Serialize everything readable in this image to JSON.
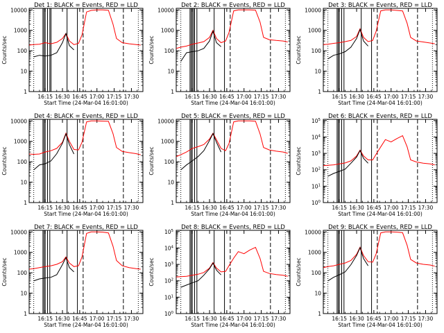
{
  "figure": {
    "ylabel": "Counts/sec",
    "xlabel": "Start Time (24-Mar-04 16:01:00)",
    "x_ticks": [
      "16:15",
      "16:30",
      "16:45",
      "17:00",
      "17:15",
      "17:30"
    ],
    "y_ticks_decimal": [
      "1",
      "10",
      "100",
      "1000",
      "10000"
    ],
    "y_ticks_power": [
      "10^0",
      "10^1",
      "10^2",
      "10^3",
      "10^4",
      "10^5"
    ],
    "series_colors": {
      "events": "#000000",
      "lld": "#ff0000"
    }
  },
  "chart_data": [
    {
      "type": "line",
      "title": "Det 1: BLACK = Events, RED = LLD",
      "xlabel": "Start Time (24-Mar-04 16:01:00)",
      "ylabel": "Counts/sec",
      "ylim": [
        1,
        12000
      ],
      "y_scale": "log",
      "y_tick_style": "decimal",
      "x": [
        "16:01",
        "16:05",
        "16:10",
        "16:15",
        "16:20",
        "16:25",
        "16:30",
        "16:33",
        "16:36",
        "16:40",
        "16:44",
        "16:47",
        "16:51",
        "16:55",
        "17:00",
        "17:05",
        "17:10",
        "17:14",
        "17:17",
        "17:22",
        "17:28",
        "17:34",
        "17:38"
      ],
      "series": [
        {
          "values": [
            190,
            200,
            210,
            250,
            220,
            260,
            400,
            700,
            300,
            200,
            230,
            600,
            8000,
            9500,
            10000,
            10000,
            9600,
            2000,
            400,
            250,
            220,
            200,
            190
          ]
        },
        {
          "values": [
            null,
            50,
            60,
            55,
            60,
            80,
            250,
            700,
            180,
            110,
            null,
            null,
            null,
            null,
            null,
            null,
            null,
            null,
            null,
            null,
            null,
            null,
            null
          ]
        }
      ],
      "vlines_solid": [
        "16:13",
        "16:14",
        "16:15",
        "16:17",
        "16:19",
        "16:20",
        "16:34",
        "16:43"
      ],
      "vlines_dashed": [
        "16:48",
        "17:23"
      ],
      "vlines_dotted": [
        "16:05",
        "17:36"
      ]
    },
    {
      "type": "line",
      "title": "Det 2: BLACK = Events, RED = LLD",
      "xlabel": "Start Time (24-Mar-04 16:01:00)",
      "ylabel": "Counts/sec",
      "ylim": [
        1,
        12000
      ],
      "y_scale": "log",
      "y_tick_style": "decimal",
      "x": [
        "16:01",
        "16:05",
        "16:10",
        "16:15",
        "16:20",
        "16:25",
        "16:30",
        "16:33",
        "16:36",
        "16:40",
        "16:44",
        "16:47",
        "16:51",
        "16:55",
        "17:00",
        "17:05",
        "17:10",
        "17:14",
        "17:17",
        "17:22",
        "17:28",
        "17:34",
        "17:38"
      ],
      "series": [
        {
          "values": [
            130,
            150,
            170,
            210,
            240,
            280,
            450,
            1000,
            400,
            250,
            300,
            800,
            9000,
            10000,
            10000,
            10000,
            9800,
            2500,
            450,
            350,
            320,
            300,
            270
          ]
        },
        {
          "values": [
            null,
            30,
            80,
            90,
            100,
            130,
            300,
            900,
            250,
            160,
            null,
            null,
            null,
            null,
            null,
            null,
            null,
            null,
            null,
            null,
            null,
            null,
            null
          ]
        }
      ],
      "vlines_solid": [
        "16:13",
        "16:14",
        "16:15",
        "16:16",
        "16:17",
        "16:19",
        "16:34",
        "16:43"
      ],
      "vlines_dashed": [
        "16:48",
        "17:23"
      ],
      "vlines_dotted": [
        "16:05",
        "17:36"
      ]
    },
    {
      "type": "line",
      "title": "Det 3: BLACK = Events, RED = LLD",
      "xlabel": "Start Time (24-Mar-04 16:01:00)",
      "ylabel": "Counts/sec",
      "ylim": [
        1,
        12000
      ],
      "y_scale": "log",
      "y_tick_style": "decimal",
      "x": [
        "16:01",
        "16:05",
        "16:10",
        "16:15",
        "16:20",
        "16:25",
        "16:30",
        "16:33",
        "16:36",
        "16:40",
        "16:44",
        "16:47",
        "16:51",
        "16:55",
        "17:00",
        "17:05",
        "17:10",
        "17:14",
        "17:17",
        "17:22",
        "17:28",
        "17:34",
        "17:38"
      ],
      "series": [
        {
          "values": [
            200,
            210,
            230,
            250,
            280,
            320,
            500,
            1200,
            450,
            280,
            320,
            900,
            9000,
            10000,
            10000,
            9500,
            9000,
            2200,
            450,
            300,
            270,
            240,
            220
          ]
        },
        {
          "values": [
            null,
            40,
            60,
            70,
            90,
            150,
            400,
            1100,
            300,
            170,
            null,
            null,
            null,
            null,
            null,
            null,
            null,
            null,
            null,
            null,
            null,
            null,
            null
          ]
        }
      ],
      "vlines_solid": [
        "16:13",
        "16:14",
        "16:15",
        "16:17",
        "16:19",
        "16:34",
        "16:43"
      ],
      "vlines_dashed": [
        "16:48",
        "17:23"
      ],
      "vlines_dotted": [
        "16:05",
        "17:36"
      ]
    },
    {
      "type": "line",
      "title": "Det 4: BLACK = Events, RED = LLD",
      "xlabel": "Start Time (24-Mar-04 16:01:00)",
      "ylabel": "Counts/sec",
      "ylim": [
        1,
        12000
      ],
      "y_scale": "log",
      "y_tick_style": "decimal",
      "x": [
        "16:01",
        "16:05",
        "16:10",
        "16:15",
        "16:20",
        "16:25",
        "16:30",
        "16:33",
        "16:36",
        "16:40",
        "16:44",
        "16:47",
        "16:51",
        "16:55",
        "17:00",
        "17:05",
        "17:10",
        "17:14",
        "17:17",
        "17:22",
        "17:28",
        "17:34",
        "17:38"
      ],
      "series": [
        {
          "values": [
            240,
            230,
            240,
            300,
            350,
            450,
            900,
            2500,
            1000,
            400,
            380,
            900,
            9000,
            10000,
            10000,
            9800,
            9600,
            2400,
            500,
            320,
            280,
            250,
            220
          ]
        },
        {
          "values": [
            null,
            40,
            70,
            80,
            110,
            250,
            800,
            2300,
            700,
            240,
            null,
            null,
            null,
            null,
            null,
            null,
            null,
            null,
            null,
            null,
            null,
            null,
            null
          ]
        }
      ],
      "vlines_solid": [
        "16:13",
        "16:14",
        "16:15",
        "16:17",
        "16:19",
        "16:34",
        "16:43"
      ],
      "vlines_dashed": [
        "16:48",
        "17:23"
      ],
      "vlines_dotted": [
        "16:05",
        "17:36"
      ]
    },
    {
      "type": "line",
      "title": "Det 5: BLACK = Events, RED = LLD",
      "xlabel": "Start Time (24-Mar-04 16:01:00)",
      "ylabel": "Counts/sec",
      "ylim": [
        1,
        12000
      ],
      "y_scale": "log",
      "y_tick_style": "decimal",
      "x": [
        "16:01",
        "16:05",
        "16:10",
        "16:15",
        "16:20",
        "16:25",
        "16:30",
        "16:33",
        "16:36",
        "16:40",
        "16:44",
        "16:47",
        "16:51",
        "16:55",
        "17:00",
        "17:05",
        "17:10",
        "17:14",
        "17:17",
        "17:22",
        "17:28",
        "17:34",
        "17:38"
      ],
      "series": [
        {
          "values": [
            180,
            220,
            300,
            450,
            550,
            700,
            1300,
            2500,
            1200,
            450,
            350,
            800,
            9000,
            10000,
            10000,
            10000,
            9700,
            2300,
            500,
            380,
            330,
            300,
            260
          ]
        },
        {
          "values": [
            null,
            40,
            70,
            110,
            180,
            350,
            1100,
            2400,
            900,
            300,
            null,
            null,
            null,
            null,
            null,
            null,
            null,
            null,
            null,
            null,
            null,
            null,
            null
          ]
        }
      ],
      "vlines_solid": [
        "16:13",
        "16:14",
        "16:15",
        "16:17",
        "16:19",
        "16:34",
        "16:43"
      ],
      "vlines_dashed": [
        "16:48",
        "17:23"
      ],
      "vlines_dotted": [
        "16:05",
        "17:36"
      ]
    },
    {
      "type": "line",
      "title": "Det 6: BLACK = Events, RED = LLD",
      "xlabel": "Start Time (24-Mar-04 16:01:00)",
      "ylabel": "Counts/sec",
      "ylim": [
        1,
        120000
      ],
      "y_scale": "log",
      "y_tick_style": "power",
      "x": [
        "16:01",
        "16:05",
        "16:10",
        "16:15",
        "16:20",
        "16:25",
        "16:30",
        "16:33",
        "16:36",
        "16:40",
        "16:44",
        "16:47",
        "16:51",
        "16:55",
        "17:00",
        "17:05",
        "17:10",
        "17:14",
        "17:17",
        "17:22",
        "17:28",
        "17:34",
        "17:38"
      ],
      "series": [
        {
          "values": [
            180,
            190,
            200,
            230,
            260,
            350,
            700,
            1600,
            700,
            400,
            400,
            900,
            2500,
            7000,
            5000,
            8000,
            12000,
            2500,
            400,
            300,
            250,
            230,
            200
          ]
        },
        {
          "values": [
            null,
            40,
            60,
            80,
            110,
            250,
            600,
            1500,
            500,
            250,
            null,
            null,
            null,
            null,
            null,
            null,
            null,
            null,
            null,
            null,
            null,
            null,
            null
          ]
        }
      ],
      "vlines_solid": [
        "16:13",
        "16:14",
        "16:15",
        "16:17",
        "16:19",
        "16:34",
        "16:43"
      ],
      "vlines_dashed": [
        "16:48",
        "17:23"
      ],
      "vlines_dotted": [
        "16:05",
        "17:36"
      ]
    },
    {
      "type": "line",
      "title": "Det 7: BLACK = Events, RED = LLD",
      "xlabel": "Start Time (24-Mar-04 16:01:00)",
      "ylabel": "Counts/sec",
      "ylim": [
        1,
        12000
      ],
      "y_scale": "log",
      "y_tick_style": "decimal",
      "x": [
        "16:01",
        "16:05",
        "16:10",
        "16:15",
        "16:20",
        "16:25",
        "16:30",
        "16:33",
        "16:36",
        "16:40",
        "16:44",
        "16:47",
        "16:51",
        "16:55",
        "17:00",
        "17:05",
        "17:10",
        "17:14",
        "17:17",
        "17:22",
        "17:28",
        "17:34",
        "17:38"
      ],
      "series": [
        {
          "values": [
            150,
            160,
            180,
            200,
            220,
            260,
            350,
            600,
            300,
            200,
            220,
            600,
            8500,
            10000,
            10000,
            9800,
            9000,
            2000,
            400,
            220,
            180,
            160,
            150
          ]
        },
        {
          "values": [
            null,
            40,
            50,
            55,
            60,
            80,
            250,
            550,
            180,
            110,
            null,
            null,
            null,
            null,
            null,
            null,
            null,
            null,
            null,
            null,
            null,
            null,
            null
          ]
        }
      ],
      "vlines_solid": [
        "16:13",
        "16:14",
        "16:15",
        "16:17",
        "16:19",
        "16:34",
        "16:43"
      ],
      "vlines_dashed": [
        "16:48",
        "17:23"
      ],
      "vlines_dotted": [
        "16:05",
        "17:36"
      ]
    },
    {
      "type": "line",
      "title": "Det 8: BLACK = Events, RED = LLD",
      "xlabel": "Start Time (24-Mar-04 16:01:00)",
      "ylabel": "Counts/sec",
      "ylim": [
        1,
        120000
      ],
      "y_scale": "log",
      "y_tick_style": "power",
      "x": [
        "16:01",
        "16:05",
        "16:10",
        "16:15",
        "16:20",
        "16:25",
        "16:30",
        "16:33",
        "16:36",
        "16:40",
        "16:44",
        "16:47",
        "16:51",
        "16:55",
        "17:00",
        "17:05",
        "17:10",
        "17:14",
        "17:17",
        "17:22",
        "17:28",
        "17:34",
        "17:38"
      ],
      "series": [
        {
          "values": [
            170,
            180,
            190,
            220,
            250,
            320,
            600,
            1300,
            600,
            350,
            380,
            850,
            2400,
            6000,
            4500,
            7500,
            11000,
            2300,
            380,
            280,
            240,
            220,
            190
          ]
        },
        {
          "values": [
            null,
            40,
            55,
            75,
            100,
            220,
            550,
            1200,
            450,
            230,
            null,
            null,
            null,
            null,
            null,
            null,
            null,
            null,
            null,
            null,
            null,
            null,
            null
          ]
        }
      ],
      "vlines_solid": [
        "16:13",
        "16:14",
        "16:15",
        "16:17",
        "16:19",
        "16:34",
        "16:43"
      ],
      "vlines_dashed": [
        "16:48",
        "17:23"
      ],
      "vlines_dotted": [
        "16:05",
        "17:36"
      ]
    },
    {
      "type": "line",
      "title": "Det 9: BLACK = Events, RED = LLD",
      "xlabel": "Start Time (24-Mar-04 16:01:00)",
      "ylabel": "Counts/sec",
      "ylim": [
        1,
        12000
      ],
      "y_scale": "log",
      "y_tick_style": "decimal",
      "x": [
        "16:01",
        "16:05",
        "16:10",
        "16:15",
        "16:20",
        "16:25",
        "16:30",
        "16:33",
        "16:36",
        "16:40",
        "16:44",
        "16:47",
        "16:51",
        "16:55",
        "17:00",
        "17:05",
        "17:10",
        "17:14",
        "17:17",
        "17:22",
        "17:28",
        "17:34",
        "17:38"
      ],
      "series": [
        {
          "values": [
            180,
            200,
            220,
            260,
            300,
            400,
            800,
            1800,
            700,
            350,
            330,
            850,
            9000,
            10000,
            10000,
            9800,
            9200,
            2200,
            450,
            300,
            260,
            240,
            210
          ]
        },
        {
          "values": [
            null,
            40,
            60,
            80,
            110,
            250,
            700,
            1700,
            500,
            220,
            null,
            null,
            null,
            null,
            null,
            null,
            null,
            null,
            null,
            null,
            null,
            null,
            null
          ]
        }
      ],
      "vlines_solid": [
        "16:13",
        "16:14",
        "16:15",
        "16:17",
        "16:19",
        "16:34",
        "16:43"
      ],
      "vlines_dashed": [
        "16:48",
        "17:23"
      ],
      "vlines_dotted": [
        "16:05",
        "17:36"
      ]
    }
  ]
}
